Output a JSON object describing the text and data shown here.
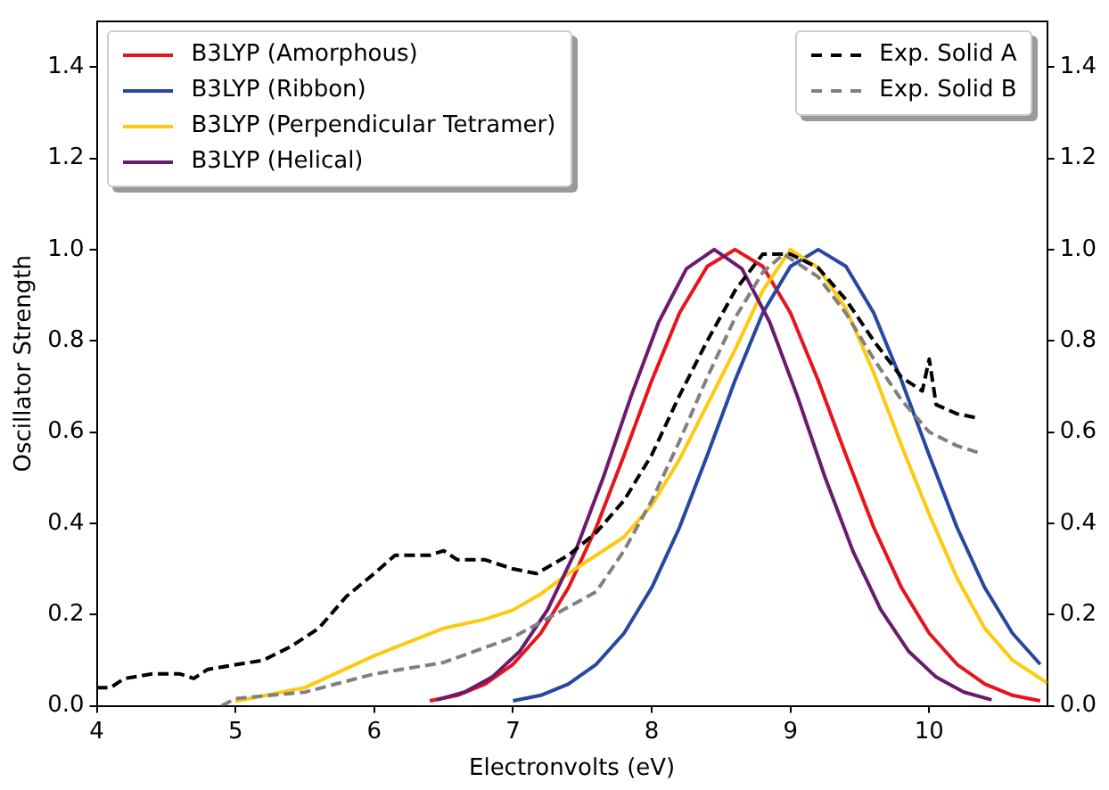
{
  "chart_data": {
    "type": "line",
    "xlabel": "Electronvolts (eV)",
    "ylabel": "Oscillator Strength",
    "xlim": [
      4,
      10.85
    ],
    "xticks": [
      4,
      5,
      6,
      7,
      8,
      9,
      10
    ],
    "ylim": [
      0,
      1.5
    ],
    "yticks": [
      {
        "value": 0,
        "label": "0.0"
      },
      0.2,
      0.4,
      0.6,
      0.8,
      {
        "value": 1,
        "label": "1.0"
      },
      1.2,
      1.4
    ],
    "y2lim": [
      0,
      1.5
    ],
    "y2ticks": [
      {
        "value": 0,
        "label": "0.0"
      },
      0.2,
      0.4,
      0.6,
      0.8,
      {
        "value": 1,
        "label": "1.0"
      },
      1.2,
      1.4
    ],
    "grid": false,
    "legend": "top left",
    "marker": "none",
    "series": [
      {
        "name": "B3LYP (Amorphous)",
        "color": "#e8141c",
        "line_style": "solid",
        "x": [
          6.4,
          6.6,
          6.8,
          7.0,
          7.2,
          7.4,
          7.6,
          7.8,
          8.0,
          8.2,
          8.4,
          8.6,
          8.8,
          9.0,
          9.2,
          9.4,
          9.6,
          9.8,
          10.0,
          10.2,
          10.4,
          10.6,
          10.8
        ],
        "values": [
          0.011,
          0.023,
          0.048,
          0.091,
          0.159,
          0.259,
          0.391,
          0.549,
          0.713,
          0.861,
          0.963,
          1,
          0.963,
          0.861,
          0.713,
          0.549,
          0.391,
          0.259,
          0.159,
          0.091,
          0.048,
          0.023,
          0.011
        ]
      },
      {
        "name": "B3LYP (Ribbon)",
        "color": "#2747a0",
        "line_style": "solid",
        "x": [
          7.0,
          7.2,
          7.4,
          7.6,
          7.8,
          8.0,
          8.2,
          8.4,
          8.6,
          8.8,
          9.0,
          9.2,
          9.4,
          9.6,
          9.8,
          10.0,
          10.2,
          10.4,
          10.6,
          10.8
        ],
        "values": [
          0.011,
          0.023,
          0.048,
          0.091,
          0.159,
          0.259,
          0.391,
          0.549,
          0.713,
          0.861,
          0.963,
          1,
          0.963,
          0.861,
          0.713,
          0.549,
          0.391,
          0.259,
          0.159,
          0.091
        ]
      },
      {
        "name": "B3LYP (Perpendicular Tetramer)",
        "color": "#ffc90e",
        "line_style": "solid",
        "x": [
          5.0,
          5.5,
          6.0,
          6.5,
          6.8,
          7.0,
          7.2,
          7.4,
          7.6,
          7.8,
          8.0,
          8.2,
          8.4,
          8.6,
          8.8,
          9.0,
          9.2,
          9.4,
          9.6,
          9.8,
          10.0,
          10.2,
          10.4,
          10.6,
          10.85
        ],
        "values": [
          0.01,
          0.04,
          0.11,
          0.17,
          0.19,
          0.21,
          0.245,
          0.29,
          0.33,
          0.37,
          0.44,
          0.54,
          0.66,
          0.78,
          0.91,
          1,
          0.96,
          0.87,
          0.73,
          0.57,
          0.42,
          0.28,
          0.17,
          0.1,
          0.05
        ]
      },
      {
        "name": "B3LYP (Helical)",
        "color": "#6a1b6e",
        "line_style": "solid",
        "x": [
          6.45,
          6.65,
          6.85,
          7.05,
          7.25,
          7.45,
          7.65,
          7.85,
          8.05,
          8.25,
          8.45,
          8.65,
          8.85,
          9.05,
          9.25,
          9.45,
          9.65,
          9.85,
          10.05,
          10.25,
          10.45
        ],
        "values": [
          0.013,
          0.03,
          0.063,
          0.12,
          0.211,
          0.339,
          0.5,
          0.678,
          0.841,
          0.958,
          1,
          0.958,
          0.841,
          0.678,
          0.5,
          0.339,
          0.211,
          0.12,
          0.063,
          0.03,
          0.013
        ]
      },
      {
        "name": "Exp. Solid A",
        "color": "#000000",
        "line_style": "dashed",
        "x": [
          4,
          4.1,
          4.2,
          4.4,
          4.6,
          4.7,
          4.8,
          5.0,
          5.2,
          5.4,
          5.6,
          5.8,
          6.0,
          6.15,
          6.4,
          6.5,
          6.6,
          6.8,
          7.0,
          7.17,
          7.4,
          7.6,
          7.8,
          8.0,
          8.2,
          8.4,
          8.6,
          8.8,
          9.0,
          9.2,
          9.4,
          9.6,
          9.8,
          9.95,
          10.0,
          10.05,
          10.2,
          10.36
        ],
        "values": [
          0.04,
          0.04,
          0.06,
          0.07,
          0.07,
          0.06,
          0.08,
          0.09,
          0.1,
          0.13,
          0.17,
          0.24,
          0.29,
          0.33,
          0.33,
          0.34,
          0.32,
          0.32,
          0.3,
          0.29,
          0.33,
          0.38,
          0.45,
          0.55,
          0.68,
          0.8,
          0.91,
          0.99,
          0.99,
          0.96,
          0.89,
          0.8,
          0.72,
          0.69,
          0.76,
          0.66,
          0.64,
          0.63
        ]
      },
      {
        "name": "Exp. Solid B",
        "color": "#808080",
        "line_style": "dashed",
        "x": [
          4.9,
          5.0,
          5.5,
          6.0,
          6.5,
          7.0,
          7.3,
          7.6,
          7.8,
          8.0,
          8.2,
          8.4,
          8.6,
          8.8,
          8.95,
          9.2,
          9.4,
          9.6,
          9.8,
          10.0,
          10.2,
          10.35
        ],
        "values": [
          0,
          0.016,
          0.03,
          0.07,
          0.095,
          0.15,
          0.2,
          0.25,
          0.34,
          0.45,
          0.58,
          0.72,
          0.85,
          0.95,
          0.99,
          0.94,
          0.86,
          0.76,
          0.67,
          0.6,
          0.57,
          0.555
        ]
      }
    ]
  }
}
